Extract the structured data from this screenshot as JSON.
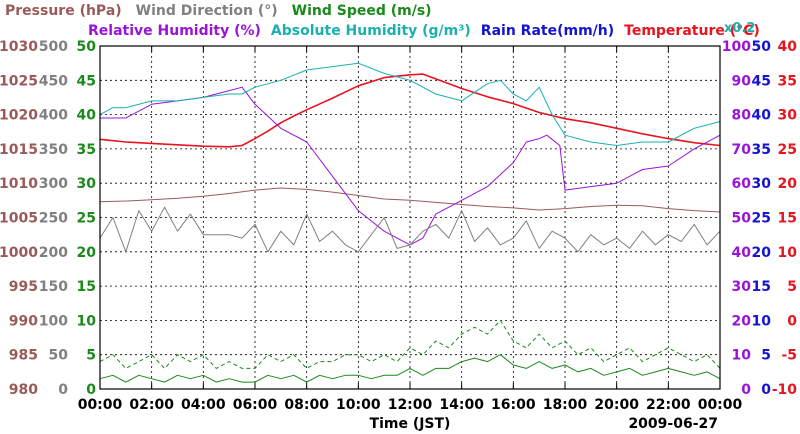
{
  "chart_data": {
    "type": "line",
    "legend_row1": [
      {
        "label": "Pressure (hPa)",
        "color": "#9a5a5a"
      },
      {
        "label": "Wind Direction (°)",
        "color": "#808080"
      },
      {
        "label": "Wind Speed (m/s)",
        "color": "#1a8a1a"
      }
    ],
    "legend_row2": [
      {
        "label": "Relative Humidity (%)",
        "color": "#9a14d8"
      },
      {
        "label": "Absolute Humidity (g/m³)",
        "color": "#1ab0b0"
      },
      {
        "label": "Rain Rate(mm/h)",
        "color": "#1414d0"
      },
      {
        "label": "Temperature (°C)",
        "color": "#e8141e"
      }
    ],
    "scale_note": "x0.2",
    "scale_note_color": "#1ab0b0",
    "xlabel": "Time (JST)",
    "date": "2009-06-27",
    "x_ticks": [
      "00:00",
      "02:00",
      "04:00",
      "06:00",
      "08:00",
      "10:00",
      "12:00",
      "14:00",
      "16:00",
      "18:00",
      "20:00",
      "22:00",
      "00:00"
    ],
    "xlim": [
      0,
      24
    ],
    "left_axes": [
      {
        "name": "Pressure (hPa)",
        "color": "#9a5a5a",
        "ticks": [
          "980",
          "985",
          "990",
          "995",
          "1000",
          "1005",
          "1010",
          "1015",
          "1020",
          "1025",
          "1030"
        ],
        "range": [
          980,
          1030
        ]
      },
      {
        "name": "Wind Direction (°)",
        "color": "#808080",
        "ticks": [
          "0",
          "50",
          "100",
          "150",
          "200",
          "250",
          "300",
          "350",
          "400",
          "450",
          "500"
        ],
        "range": [
          0,
          500
        ]
      },
      {
        "name": "Wind Speed (m/s)",
        "color": "#1a8a1a",
        "ticks": [
          "0",
          "5",
          "10",
          "15",
          "20",
          "25",
          "30",
          "35",
          "40",
          "45",
          "50"
        ],
        "range": [
          0,
          50
        ]
      }
    ],
    "right_axes": [
      {
        "name": "Relative Humidity (%)",
        "color": "#9a14d8",
        "ticks": [
          "0",
          "10",
          "20",
          "30",
          "40",
          "50",
          "60",
          "70",
          "80",
          "90",
          "100"
        ],
        "range": [
          0,
          100
        ]
      },
      {
        "name": "Rain Rate / Absolute Humidity x0.2",
        "color": "#1414d0",
        "ticks": [
          "0",
          "5",
          "10",
          "15",
          "20",
          "25",
          "30",
          "35",
          "40",
          "45",
          "50"
        ],
        "range": [
          0,
          50
        ]
      },
      {
        "name": "Temperature (°C)",
        "color": "#e8141e",
        "ticks": [
          "-10",
          "-5",
          "0",
          "5",
          "10",
          "15",
          "20",
          "25",
          "30",
          "35",
          "40"
        ],
        "range": [
          -10,
          40
        ]
      }
    ],
    "series": [
      {
        "name": "Pressure",
        "axis": "Pressure (hPa)",
        "color": "#9a5a5a",
        "x": [
          0,
          1,
          2,
          3,
          4,
          5,
          6,
          7,
          8,
          9,
          10,
          11,
          12,
          13,
          14,
          15,
          16,
          17,
          18,
          19,
          20,
          21,
          22,
          23,
          24
        ],
        "values": [
          1007.3,
          1007.4,
          1007.6,
          1007.8,
          1008.1,
          1008.5,
          1009.0,
          1009.3,
          1009.1,
          1008.7,
          1008.2,
          1007.7,
          1007.5,
          1007.2,
          1006.9,
          1006.6,
          1006.4,
          1006.1,
          1006.3,
          1006.6,
          1006.8,
          1006.7,
          1006.3,
          1006.0,
          1005.8
        ]
      },
      {
        "name": "Temperature",
        "axis": "Temperature (°C)",
        "color": "#e8141e",
        "x": [
          0,
          1,
          2,
          3,
          4,
          5,
          5.5,
          6,
          6.5,
          7,
          7.5,
          8,
          9,
          10,
          11,
          12,
          12.5,
          13,
          14,
          15,
          16,
          17,
          18,
          19,
          20,
          21,
          22,
          23,
          24
        ],
        "values": [
          26.4,
          26.0,
          25.8,
          25.6,
          25.4,
          25.3,
          25.5,
          26.5,
          27.6,
          28.8,
          29.8,
          30.7,
          32.4,
          34.2,
          35.4,
          35.8,
          35.9,
          35.2,
          33.8,
          32.6,
          31.6,
          30.3,
          29.4,
          28.8,
          28.0,
          27.2,
          26.5,
          25.9,
          25.5
        ]
      },
      {
        "name": "Relative Humidity",
        "axis": "Relative Humidity (%)",
        "color": "#9a14d8",
        "x": [
          0,
          1,
          2,
          3,
          4,
          5,
          5.5,
          6,
          7,
          8,
          9,
          10,
          11,
          12,
          12.5,
          13,
          14,
          15,
          16,
          16.5,
          17,
          17.3,
          17.8,
          18,
          19,
          20,
          21,
          22,
          23,
          24
        ],
        "values": [
          79,
          79,
          83,
          84,
          85,
          87,
          88,
          83,
          76,
          72,
          62,
          52,
          46,
          42,
          44,
          51,
          55,
          59,
          66,
          72,
          73,
          74,
          71,
          58,
          59,
          60,
          64,
          65,
          70,
          74
        ]
      },
      {
        "name": "Absolute Humidity x0.2",
        "axis": "Rain Rate / Absolute Humidity x0.2",
        "color": "#1ab0b0",
        "x": [
          0,
          0.5,
          1,
          2,
          3,
          4,
          5,
          5.5,
          6,
          7,
          8,
          9,
          10,
          11,
          12,
          13,
          14,
          15,
          15.5,
          16,
          16.5,
          17,
          17.5,
          18,
          19,
          20,
          21,
          22,
          23,
          24
        ],
        "values": [
          40,
          41,
          41,
          42,
          42,
          42.5,
          43,
          43,
          44,
          45,
          46.5,
          47,
          47.5,
          46,
          45,
          43,
          42,
          44.5,
          45,
          43,
          42,
          44,
          40,
          37,
          36,
          35.5,
          36,
          36,
          38,
          39
        ]
      },
      {
        "name": "Rain Rate",
        "axis": "Rain Rate / Absolute Humidity x0.2",
        "color": "#1414d0",
        "x": [
          0,
          24
        ],
        "values": [
          0,
          0
        ]
      },
      {
        "name": "Wind Direction",
        "axis": "Wind Direction (°)",
        "color": "#808080",
        "x": [
          0,
          0.5,
          1,
          1.5,
          2,
          2.5,
          3,
          3.5,
          4,
          4.5,
          5,
          5.5,
          6,
          6.5,
          7,
          7.5,
          8,
          8.5,
          9,
          9.5,
          10,
          10.5,
          11,
          11.5,
          12,
          12.5,
          13,
          13.5,
          14,
          14.5,
          15,
          15.5,
          16,
          16.5,
          17,
          17.5,
          18,
          18.5,
          19,
          19.5,
          20,
          20.5,
          21,
          21.5,
          22,
          22.5,
          23,
          23.5,
          24
        ],
        "values": [
          220,
          250,
          200,
          260,
          230,
          265,
          230,
          255,
          225,
          225,
          225,
          220,
          240,
          200,
          230,
          210,
          255,
          215,
          230,
          210,
          200,
          225,
          250,
          205,
          210,
          230,
          240,
          220,
          260,
          215,
          235,
          210,
          220,
          245,
          205,
          230,
          220,
          200,
          225,
          210,
          220,
          205,
          230,
          210,
          225,
          215,
          240,
          210,
          230
        ]
      },
      {
        "name": "Wind Speed (max)",
        "axis": "Wind Speed (m/s)",
        "color": "#1a8a1a",
        "dashed": true,
        "x": [
          0,
          0.5,
          1,
          1.5,
          2,
          2.5,
          3,
          3.5,
          4,
          4.5,
          5,
          5.5,
          6,
          6.5,
          7,
          7.5,
          8,
          8.5,
          9,
          9.5,
          10,
          10.5,
          11,
          11.5,
          12,
          12.5,
          13,
          13.5,
          14,
          14.5,
          15,
          15.5,
          16,
          16.5,
          17,
          17.5,
          18,
          18.5,
          19,
          19.5,
          20,
          20.5,
          21,
          21.5,
          22,
          22.5,
          23,
          23.5,
          24
        ],
        "values": [
          4,
          5,
          3,
          4,
          5,
          3,
          5,
          4,
          5,
          3,
          4,
          3,
          3,
          5,
          4,
          5,
          3,
          4,
          4,
          5,
          5,
          4,
          5,
          4,
          6,
          5,
          7,
          6,
          8,
          9,
          8,
          10,
          7,
          6,
          8,
          6,
          7,
          5,
          6,
          4,
          5,
          6,
          4,
          5,
          6,
          5,
          4,
          5,
          3
        ]
      },
      {
        "name": "Wind Speed (mean)",
        "axis": "Wind Speed (m/s)",
        "color": "#1a8a1a",
        "x": [
          0,
          0.5,
          1,
          1.5,
          2,
          2.5,
          3,
          3.5,
          4,
          4.5,
          5,
          5.5,
          6,
          6.5,
          7,
          7.5,
          8,
          8.5,
          9,
          9.5,
          10,
          10.5,
          11,
          11.5,
          12,
          12.5,
          13,
          13.5,
          14,
          14.5,
          15,
          15.5,
          16,
          16.5,
          17,
          17.5,
          18,
          18.5,
          19,
          19.5,
          20,
          20.5,
          21,
          21.5,
          22,
          22.5,
          23,
          23.5,
          24
        ],
        "values": [
          1.5,
          2,
          1,
          2,
          1.5,
          1,
          2,
          1.5,
          2,
          1,
          1.5,
          1,
          1,
          2,
          1.5,
          2,
          1,
          2,
          1.5,
          2,
          2,
          1.5,
          2,
          2,
          3,
          2,
          3,
          3,
          4,
          4.5,
          4,
          5,
          3.5,
          3,
          4,
          3,
          3.5,
          2.5,
          3,
          2,
          2.5,
          3,
          2,
          2.5,
          3,
          2.5,
          2,
          2.5,
          1.5
        ]
      }
    ]
  }
}
